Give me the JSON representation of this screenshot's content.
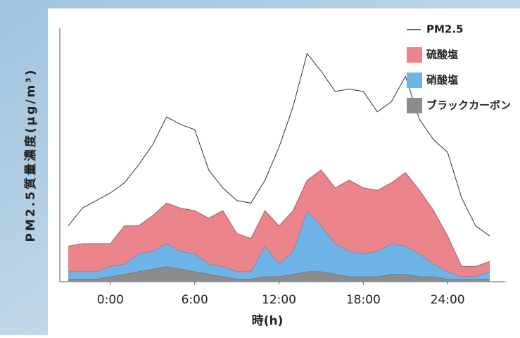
{
  "chart_data": {
    "type": "area",
    "x_label": "時(h)",
    "y_label": "PM2.5質量濃度(μg/m³)",
    "x": [
      -3,
      -2,
      -1,
      0,
      1,
      2,
      3,
      4,
      5,
      6,
      7,
      8,
      9,
      10,
      11,
      12,
      13,
      14,
      15,
      16,
      17,
      18,
      19,
      20,
      21,
      22,
      23,
      24,
      25,
      26,
      27
    ],
    "xlim": [
      -3.6,
      28.1
    ],
    "xticks": [
      {
        "value": 0,
        "label": "0:00"
      },
      {
        "value": 6,
        "label": "6:00"
      },
      {
        "value": 12,
        "label": "12:00"
      },
      {
        "value": 18,
        "label": "18:00"
      },
      {
        "value": 24,
        "label": "24:00"
      }
    ],
    "ylim": [
      0,
      100
    ],
    "legend": "top-right",
    "series": [
      {
        "name": "PM2.5",
        "color": "#333333",
        "style": "line",
        "values": [
          22,
          29,
          32,
          35,
          39,
          46,
          54,
          65,
          62,
          60,
          44,
          37,
          32,
          31,
          40,
          53,
          69,
          90,
          83,
          75,
          76,
          75,
          67,
          71,
          81,
          64,
          56,
          51,
          33,
          22,
          18
        ]
      },
      {
        "name": "硫酸塩",
        "color": "#ec848c",
        "style": "stacked-area",
        "values": [
          10,
          11,
          11,
          9,
          15,
          11,
          14,
          16,
          17,
          17,
          18,
          22,
          15,
          13,
          14,
          15,
          16,
          12,
          22,
          22,
          28,
          26,
          24,
          24,
          29,
          25,
          21,
          14,
          4,
          4,
          4
        ]
      },
      {
        "name": "硝酸塩",
        "color": "#6fb4e6",
        "style": "stacked-area",
        "values": [
          3,
          3,
          3,
          4,
          4,
          7,
          7,
          9,
          7,
          7,
          4,
          4,
          3,
          3,
          12,
          5,
          9,
          24,
          18,
          12,
          10,
          9,
          10,
          12,
          11,
          9,
          5,
          3,
          1,
          1,
          3
        ]
      },
      {
        "name": "ブラックカーボン",
        "color": "#8c8c8c",
        "style": "stacked-area",
        "values": [
          1,
          1,
          1,
          2,
          3,
          4,
          5,
          6,
          5,
          4,
          3,
          2,
          1,
          1,
          2,
          2,
          3,
          4,
          4,
          3,
          2,
          2,
          2,
          3,
          3,
          2,
          2,
          1,
          1,
          1,
          1
        ]
      }
    ]
  }
}
